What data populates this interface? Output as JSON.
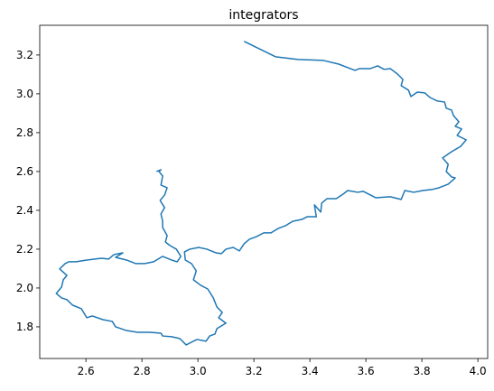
{
  "chart_data": {
    "type": "line",
    "title": "integrators",
    "x": [
      3.165,
      3.277,
      3.358,
      3.448,
      3.503,
      3.561,
      3.577,
      3.616,
      3.642,
      3.665,
      3.687,
      3.713,
      3.732,
      3.726,
      3.752,
      3.761,
      3.784,
      3.81,
      3.829,
      3.855,
      3.881,
      3.887,
      3.906,
      3.913,
      3.932,
      3.919,
      3.942,
      3.926,
      3.958,
      3.939,
      3.906,
      3.874,
      3.894,
      3.887,
      3.906,
      3.919,
      3.894,
      3.861,
      3.835,
      3.803,
      3.771,
      3.739,
      3.726,
      3.687,
      3.635,
      3.59,
      3.571,
      3.535,
      3.519,
      3.494,
      3.461,
      3.442,
      3.439,
      3.416,
      3.423,
      3.39,
      3.371,
      3.339,
      3.313,
      3.287,
      3.261,
      3.235,
      3.21,
      3.184,
      3.165,
      3.148,
      3.126,
      3.1,
      3.084,
      3.065,
      3.032,
      3.003,
      2.971,
      2.952,
      2.955,
      2.977,
      2.994,
      2.984,
      3.01,
      3.035,
      3.055,
      3.068,
      3.087,
      3.074,
      3.1,
      3.068,
      3.061,
      3.042,
      3.029,
      2.997,
      2.984,
      2.958,
      2.935,
      2.906,
      2.874,
      2.868,
      2.829,
      2.784,
      2.745,
      2.706,
      2.694,
      2.661,
      2.623,
      2.603,
      2.584,
      2.552,
      2.532,
      2.513,
      2.494,
      2.513,
      2.519,
      2.532,
      2.506,
      2.526,
      2.539,
      2.565,
      2.603,
      2.655,
      2.681,
      2.7,
      2.732,
      2.706,
      2.745,
      2.777,
      2.81,
      2.842,
      2.874,
      2.906,
      2.926,
      2.939,
      2.923,
      2.9,
      2.884,
      2.89,
      2.874,
      2.874,
      2.868,
      2.881,
      2.865,
      2.881,
      2.89,
      2.868,
      2.874,
      2.861,
      2.868,
      2.852
    ],
    "series": [
      {
        "color": "#1f77b4",
        "values": [
          3.27,
          3.191,
          3.177,
          3.172,
          3.153,
          3.121,
          3.13,
          3.13,
          3.144,
          3.126,
          3.13,
          3.102,
          3.074,
          3.042,
          3.019,
          2.986,
          3.009,
          3.005,
          2.981,
          2.963,
          2.958,
          2.926,
          2.916,
          2.888,
          2.856,
          2.833,
          2.819,
          2.786,
          2.763,
          2.73,
          2.702,
          2.67,
          2.637,
          2.6,
          2.572,
          2.567,
          2.535,
          2.516,
          2.507,
          2.502,
          2.493,
          2.502,
          2.456,
          2.47,
          2.465,
          2.498,
          2.493,
          2.502,
          2.484,
          2.46,
          2.46,
          2.437,
          2.391,
          2.428,
          2.367,
          2.367,
          2.353,
          2.344,
          2.321,
          2.307,
          2.284,
          2.284,
          2.265,
          2.251,
          2.228,
          2.191,
          2.209,
          2.2,
          2.177,
          2.181,
          2.2,
          2.209,
          2.2,
          2.186,
          2.144,
          2.126,
          2.088,
          2.042,
          2.014,
          1.995,
          1.949,
          1.902,
          1.874,
          1.847,
          1.819,
          1.791,
          1.763,
          1.753,
          1.726,
          1.735,
          1.726,
          1.707,
          1.74,
          1.749,
          1.753,
          1.767,
          1.772,
          1.772,
          1.781,
          1.8,
          1.828,
          1.837,
          1.856,
          1.847,
          1.893,
          1.912,
          1.94,
          1.949,
          1.972,
          2.005,
          2.042,
          2.065,
          2.098,
          2.126,
          2.135,
          2.135,
          2.144,
          2.153,
          2.149,
          2.172,
          2.181,
          2.158,
          2.144,
          2.126,
          2.126,
          2.135,
          2.163,
          2.144,
          2.135,
          2.163,
          2.2,
          2.219,
          2.237,
          2.27,
          2.312,
          2.344,
          2.381,
          2.414,
          2.451,
          2.479,
          2.516,
          2.53,
          2.577,
          2.6,
          2.609,
          2.6
        ]
      }
    ],
    "xlim": [
      2.435,
      4.035
    ],
    "ylim": [
      1.637,
      3.353
    ],
    "xticks": [
      {
        "value": 2.6,
        "label": "2.6"
      },
      {
        "value": 2.8,
        "label": "2.8"
      },
      {
        "value": 3.0,
        "label": "3.0"
      },
      {
        "value": 3.2,
        "label": "3.2"
      },
      {
        "value": 3.4,
        "label": "3.4"
      },
      {
        "value": 3.6,
        "label": "3.6"
      },
      {
        "value": 3.8,
        "label": "3.8"
      },
      {
        "value": 4.0,
        "label": "4.0"
      }
    ],
    "yticks": [
      {
        "value": 1.8,
        "label": "1.8"
      },
      {
        "value": 2.0,
        "label": "2.0"
      },
      {
        "value": 2.2,
        "label": "2.2"
      },
      {
        "value": 2.4,
        "label": "2.4"
      },
      {
        "value": 2.6,
        "label": "2.6"
      },
      {
        "value": 2.8,
        "label": "2.8"
      },
      {
        "value": 3.0,
        "label": "3.0"
      },
      {
        "value": 3.2,
        "label": "3.2"
      }
    ],
    "grid": false
  }
}
